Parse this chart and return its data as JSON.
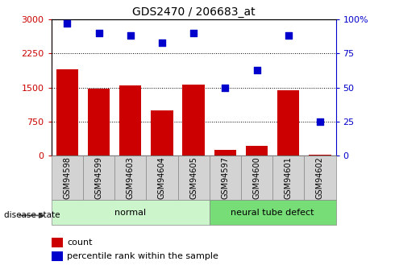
{
  "title": "GDS2470 / 206683_at",
  "samples": [
    "GSM94598",
    "GSM94599",
    "GSM94603",
    "GSM94604",
    "GSM94605",
    "GSM94597",
    "GSM94600",
    "GSM94601",
    "GSM94602"
  ],
  "counts": [
    1900,
    1470,
    1540,
    1000,
    1560,
    130,
    210,
    1440,
    30
  ],
  "percentiles": [
    97,
    90,
    88,
    83,
    90,
    50,
    63,
    88,
    25
  ],
  "bar_color": "#cc0000",
  "dot_color": "#0000cc",
  "normal_indices": [
    0,
    1,
    2,
    3,
    4
  ],
  "defect_indices": [
    5,
    6,
    7,
    8
  ],
  "normal_label": "normal",
  "defect_label": "neural tube defect",
  "disease_label": "disease state",
  "legend_count": "count",
  "legend_pct": "percentile rank within the sample",
  "ylim_left": [
    0,
    3000
  ],
  "ylim_right": [
    0,
    100
  ],
  "yticks_left": [
    0,
    750,
    1500,
    2250,
    3000
  ],
  "yticks_right": [
    0,
    25,
    50,
    75,
    100
  ],
  "bg_xtick": "#d3d3d3",
  "bg_normal": "#ccf5cc",
  "bg_defect": "#77dd77",
  "grid_color": "#000000"
}
